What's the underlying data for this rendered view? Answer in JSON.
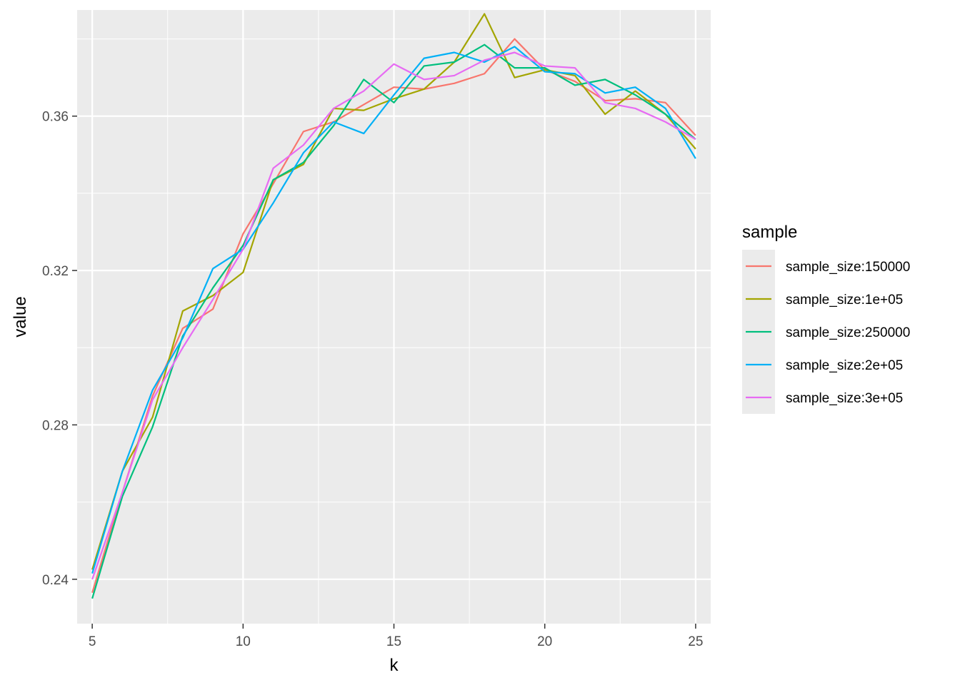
{
  "chart_data": {
    "type": "line",
    "title": "",
    "xlabel": "k",
    "ylabel": "value",
    "x": [
      5,
      6,
      7,
      8,
      9,
      10,
      11,
      12,
      13,
      14,
      15,
      16,
      17,
      18,
      19,
      20,
      21,
      22,
      23,
      24,
      25
    ],
    "xlim": [
      4.5,
      25.5
    ],
    "ylim": [
      0.2285,
      0.3875
    ],
    "xticks": [
      "5",
      "10",
      "15",
      "20",
      "25"
    ],
    "yticks": [
      "0.24",
      "0.28",
      "0.32",
      "0.36"
    ],
    "grid": true,
    "legend": {
      "title": "sample",
      "placement": "right"
    },
    "series": [
      {
        "name": "sample_size:150000",
        "color": "#F8766D",
        "values": [
          0.2365,
          0.2625,
          0.2875,
          0.305,
          0.31,
          0.3295,
          0.3425,
          0.356,
          0.3585,
          0.363,
          0.3675,
          0.367,
          0.3685,
          0.371,
          0.38,
          0.372,
          0.369,
          0.364,
          0.3645,
          0.3635,
          0.355
        ]
      },
      {
        "name": "sample_size:1e+05",
        "color": "#A3A500",
        "values": [
          0.2425,
          0.268,
          0.282,
          0.3095,
          0.3135,
          0.3195,
          0.3435,
          0.3475,
          0.362,
          0.3615,
          0.3645,
          0.367,
          0.374,
          0.3865,
          0.37,
          0.372,
          0.3705,
          0.3605,
          0.3665,
          0.3605,
          0.3515
        ]
      },
      {
        "name": "sample_size:250000",
        "color": "#00BF7D",
        "values": [
          0.235,
          0.2615,
          0.2795,
          0.303,
          0.3155,
          0.3265,
          0.3435,
          0.348,
          0.3575,
          0.3695,
          0.3635,
          0.373,
          0.374,
          0.3785,
          0.3725,
          0.3725,
          0.368,
          0.3695,
          0.3655,
          0.3605,
          0.354
        ]
      },
      {
        "name": "sample_size:2e+05",
        "color": "#00B0F6",
        "values": [
          0.2415,
          0.268,
          0.289,
          0.3025,
          0.3205,
          0.3255,
          0.3375,
          0.3505,
          0.3585,
          0.3555,
          0.3655,
          0.375,
          0.3765,
          0.374,
          0.378,
          0.3715,
          0.371,
          0.366,
          0.3675,
          0.362,
          0.349
        ]
      },
      {
        "name": "sample_size:3e+05",
        "color": "#E76BF3",
        "values": [
          0.24,
          0.2625,
          0.2865,
          0.3,
          0.3125,
          0.3255,
          0.3465,
          0.3525,
          0.362,
          0.3665,
          0.3735,
          0.3695,
          0.3705,
          0.3745,
          0.3765,
          0.373,
          0.3725,
          0.3635,
          0.362,
          0.3585,
          0.354
        ]
      }
    ]
  }
}
